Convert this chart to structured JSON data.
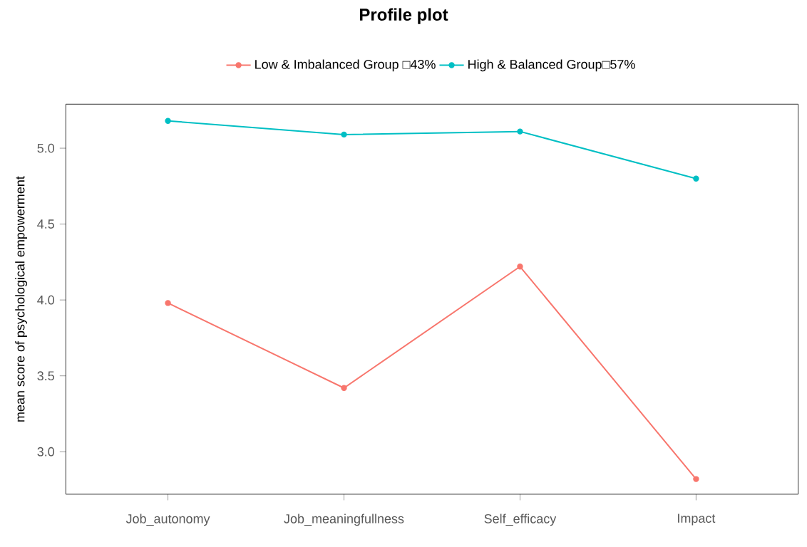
{
  "chart_data": {
    "type": "line",
    "title": "Profile plot",
    "ylabel": "mean score of psychological empowerment",
    "categories": [
      "Job_autonomy",
      "Job_meaningfullness",
      "Self_efficacy",
      "Impact"
    ],
    "series": [
      {
        "name": "Low & Imbalanced Group □43%",
        "color": "#f8766d",
        "values": [
          3.98,
          3.42,
          4.22,
          2.82
        ]
      },
      {
        "name": "High & Balanced Group□57%",
        "color": "#00bfc4",
        "values": [
          5.18,
          5.09,
          5.11,
          4.8
        ]
      }
    ],
    "ylim": [
      2.72,
      5.29
    ],
    "yticks": [
      {
        "value": 3,
        "label": "3.0"
      },
      3.5,
      {
        "value": 4,
        "label": "4.0"
      },
      4.5,
      {
        "value": 5,
        "label": "5.0"
      }
    ],
    "legend": "top",
    "marker": "circle",
    "grid": false
  }
}
